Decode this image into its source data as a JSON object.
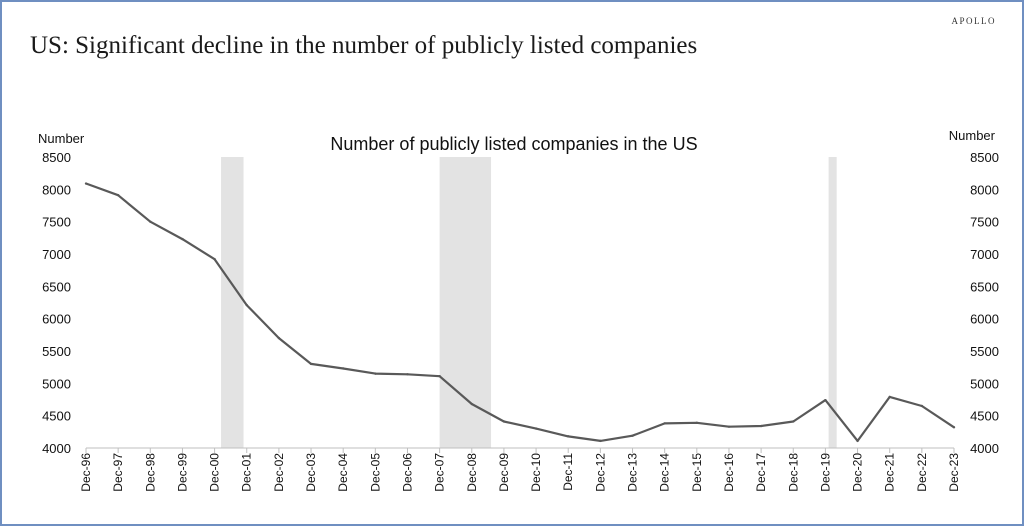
{
  "brand": "APOLLO",
  "title": "US: Significant decline in the number of publicly listed companies",
  "chart_data": {
    "type": "line",
    "title": "Number of publicly listed companies in the US",
    "ylabel_left": "Number",
    "ylabel_right": "Number",
    "ylim": [
      4000,
      8500
    ],
    "yticks": [
      4000,
      4500,
      5000,
      5500,
      6000,
      6500,
      7000,
      7500,
      8000,
      8500
    ],
    "grid": false,
    "categories": [
      "Dec-96",
      "Dec-97",
      "Dec-98",
      "Dec-99",
      "Dec-00",
      "Dec-01",
      "Dec-02",
      "Dec-03",
      "Dec-04",
      "Dec-05",
      "Dec-06",
      "Dec-07",
      "Dec-08",
      "Dec-09",
      "Dec-10",
      "Dec-11",
      "Dec-12",
      "Dec-13",
      "Dec-14",
      "Dec-15",
      "Dec-16",
      "Dec-17",
      "Dec-18",
      "Dec-19",
      "Dec-20",
      "Dec-21",
      "Dec-22",
      "Dec-23"
    ],
    "series": [
      {
        "values": [
          8090,
          7910,
          7500,
          7230,
          6920,
          6210,
          5700,
          5300,
          5230,
          5150,
          5140,
          5110,
          4680,
          4410,
          4300,
          4180,
          4110,
          4190,
          4380,
          4390,
          4330,
          4340,
          4410,
          4740,
          4110,
          4790,
          4650,
          4320
        ],
        "color": "#595959"
      }
    ],
    "recessions": [
      {
        "start": 4.2,
        "end": 4.9
      },
      {
        "start": 11.0,
        "end": 12.6
      },
      {
        "start": 23.1,
        "end": 23.35
      }
    ],
    "recession_color": "#e3e3e3"
  }
}
